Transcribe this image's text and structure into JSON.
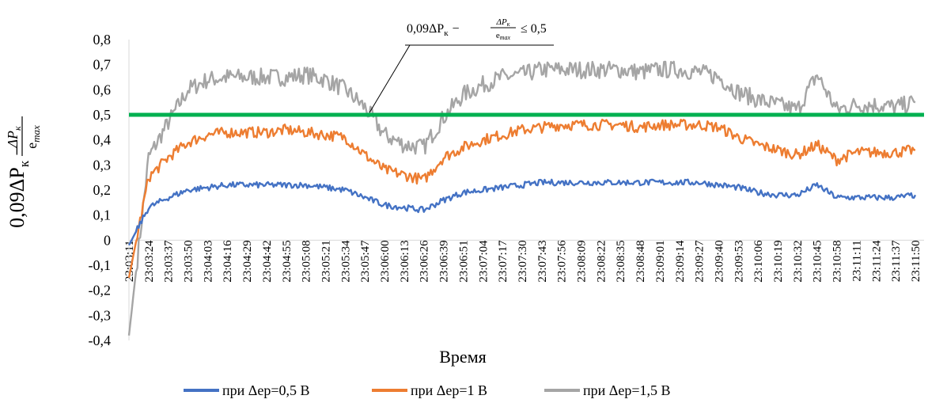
{
  "chart_data": {
    "type": "line",
    "title": "",
    "xlabel": "Время",
    "ylabel": {
      "main": "0,09ΔP",
      "main_sub": "к",
      "minus": "−",
      "frac_num": "ΔP",
      "frac_num_sub": "к",
      "frac_den": "e",
      "frac_den_sub": "max"
    },
    "annotation": {
      "prefix": "0,09ΔP",
      "prefix_sub": "к",
      "minus": "−",
      "frac_num": "ΔP",
      "frac_num_sub": "к",
      "frac_den": "e",
      "frac_den_sub": "max",
      "suffix": "≤ 0,5",
      "points_to": {
        "x": "23:05:47",
        "y": 0.5
      }
    },
    "ylim": [
      -0.4,
      0.8
    ],
    "yticks": [
      "-0,4",
      "-0,3",
      "-0,2",
      "-0,1",
      "0",
      "0,1",
      "0,2",
      "0,3",
      "0,4",
      "0,5",
      "0,6",
      "0,7",
      "0,8"
    ],
    "categories": [
      "23:03:11",
      "23:03:24",
      "23:03:37",
      "23:03:50",
      "23:04:03",
      "23:04:16",
      "23:04:29",
      "23:04:42",
      "23:04:55",
      "23:05:08",
      "23:05:21",
      "23:05:34",
      "23:05:47",
      "23:06:00",
      "23:06:13",
      "23:06:26",
      "23:06:39",
      "23:06:51",
      "23:07:04",
      "23:07:17",
      "23:07:30",
      "23:07:43",
      "23:07:56",
      "23:08:09",
      "23:08:22",
      "23:08:35",
      "23:08:48",
      "23:09:01",
      "23:09:14",
      "23:09:27",
      "23:09:40",
      "23:09:53",
      "23:10:06",
      "23:10:19",
      "23:10:32",
      "23:10:45",
      "23:10:58",
      "23:11:11",
      "23:11:24",
      "23:11:37",
      "23:11:50"
    ],
    "threshold": {
      "value": 0.5,
      "color": "#00b050"
    },
    "grid": false,
    "legend_position": "bottom",
    "series": [
      {
        "name": "при Δеp=0,5 В",
        "color": "#4472c4",
        "values": [
          -0.02,
          0.13,
          0.17,
          0.2,
          0.21,
          0.22,
          0.22,
          0.22,
          0.22,
          0.22,
          0.21,
          0.2,
          0.17,
          0.14,
          0.13,
          0.12,
          0.16,
          0.19,
          0.2,
          0.21,
          0.22,
          0.23,
          0.23,
          0.23,
          0.23,
          0.23,
          0.23,
          0.23,
          0.23,
          0.23,
          0.22,
          0.21,
          0.19,
          0.18,
          0.18,
          0.22,
          0.17,
          0.17,
          0.17,
          0.17,
          0.18
        ]
      },
      {
        "name": "при Δеp=1 В",
        "color": "#ed7d31",
        "values": [
          -0.15,
          0.25,
          0.33,
          0.39,
          0.42,
          0.43,
          0.43,
          0.43,
          0.44,
          0.43,
          0.42,
          0.41,
          0.34,
          0.28,
          0.26,
          0.24,
          0.33,
          0.37,
          0.4,
          0.42,
          0.44,
          0.45,
          0.46,
          0.46,
          0.46,
          0.46,
          0.45,
          0.46,
          0.46,
          0.46,
          0.45,
          0.41,
          0.38,
          0.36,
          0.34,
          0.38,
          0.32,
          0.35,
          0.35,
          0.35,
          0.36
        ]
      },
      {
        "name": "при Δеp=1,5 В",
        "color": "#a5a5a5",
        "values": [
          -0.38,
          0.33,
          0.47,
          0.6,
          0.64,
          0.65,
          0.65,
          0.65,
          0.65,
          0.66,
          0.64,
          0.6,
          0.53,
          0.42,
          0.38,
          0.37,
          0.49,
          0.58,
          0.62,
          0.65,
          0.66,
          0.68,
          0.68,
          0.68,
          0.68,
          0.68,
          0.67,
          0.68,
          0.68,
          0.67,
          0.65,
          0.59,
          0.56,
          0.54,
          0.52,
          0.66,
          0.52,
          0.54,
          0.54,
          0.53,
          0.55
        ]
      }
    ]
  }
}
